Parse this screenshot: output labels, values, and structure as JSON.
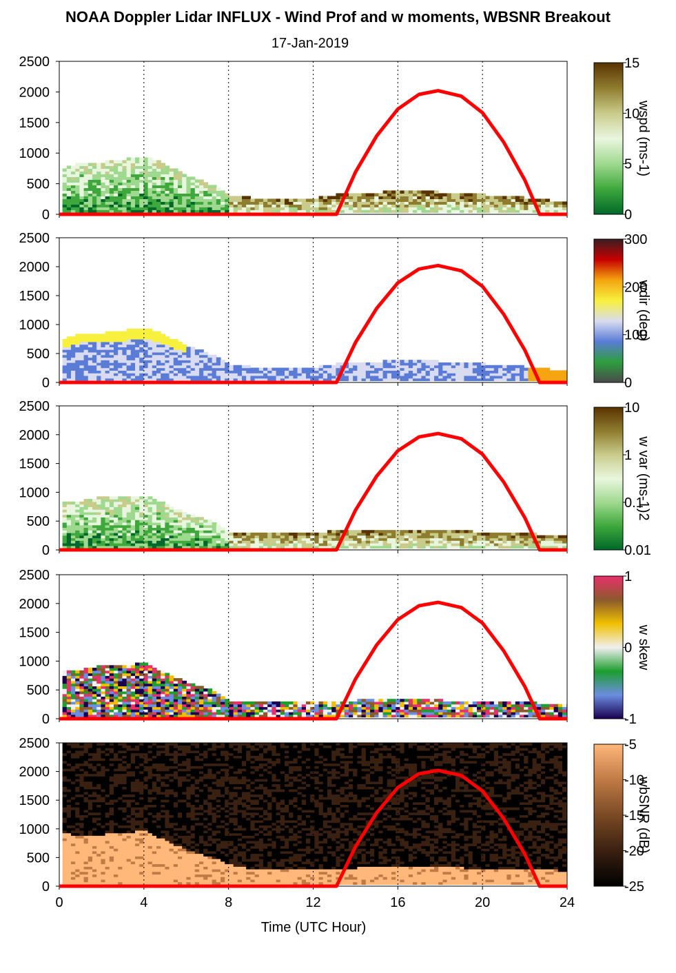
{
  "title": "NOAA Doppler Lidar INFLUX - Wind Prof and w moments, WBSNR Breakout",
  "date": "17-Jan-2019",
  "chart_data": {
    "type": "heatmap",
    "xlabel": "Time (UTC Hour)",
    "xticks": [
      "0",
      "4",
      "8",
      "12",
      "16",
      "20",
      "24"
    ],
    "xlim": [
      0,
      24
    ],
    "ylim": [
      0,
      2500
    ],
    "yticks": [
      "0",
      "500",
      "1000",
      "1500",
      "2000",
      "2500"
    ],
    "grid": "vertical dotted",
    "panels": [
      {
        "variable": "wspd",
        "colorbar_label": "wspd (ms-1)",
        "colorbar_ticks": [
          "0",
          "5",
          "10",
          "15"
        ],
        "colors": [
          "#00682a",
          "#3ea83c",
          "#9fd98f",
          "#e9f6df",
          "#c9cb8a",
          "#8f7d2f",
          "#5a3300"
        ],
        "top_of_data_m": [
          [
            0,
            720
          ],
          [
            1,
            840
          ],
          [
            2,
            840
          ],
          [
            3,
            880
          ],
          [
            4,
            930
          ],
          [
            5,
            780
          ],
          [
            6,
            600
          ],
          [
            7,
            480
          ],
          [
            8,
            300
          ],
          [
            9,
            250
          ],
          [
            10,
            240
          ],
          [
            11,
            240
          ],
          [
            12,
            250
          ],
          [
            13,
            300
          ],
          [
            14,
            320
          ],
          [
            15,
            340
          ],
          [
            16,
            360
          ],
          [
            17,
            360
          ],
          [
            18,
            340
          ],
          [
            19,
            330
          ],
          [
            20,
            300
          ],
          [
            21,
            290
          ],
          [
            22,
            250
          ],
          [
            23,
            220
          ],
          [
            24,
            150
          ]
        ]
      },
      {
        "variable": "wdir",
        "colorbar_label": "wdir (deg)",
        "colorbar_ticks": [
          "0",
          "100",
          "200",
          "300"
        ],
        "colors": [
          "#4a4a4a",
          "#2e9e3e",
          "#5a7cd6",
          "#d9dcf0",
          "#f7f03c",
          "#f4a510",
          "#c80000",
          "#3a1e22"
        ],
        "top_of_data_m": [
          [
            0,
            720
          ],
          [
            1,
            840
          ],
          [
            2,
            840
          ],
          [
            3,
            880
          ],
          [
            4,
            930
          ],
          [
            5,
            780
          ],
          [
            6,
            600
          ],
          [
            7,
            480
          ],
          [
            8,
            300
          ],
          [
            9,
            250
          ],
          [
            10,
            240
          ],
          [
            11,
            240
          ],
          [
            12,
            250
          ],
          [
            13,
            300
          ],
          [
            14,
            320
          ],
          [
            15,
            340
          ],
          [
            16,
            360
          ],
          [
            17,
            360
          ],
          [
            18,
            340
          ],
          [
            19,
            330
          ],
          [
            20,
            300
          ],
          [
            21,
            290
          ],
          [
            22,
            250
          ],
          [
            23,
            220
          ],
          [
            24,
            150
          ]
        ]
      },
      {
        "variable": "w var",
        "colorbar_label": "w var (ms-1)2",
        "colorbar_ticks": [
          "0.01",
          "0.1",
          "1",
          "10"
        ],
        "colors": [
          "#00682a",
          "#3ea83c",
          "#9fd98f",
          "#e9f6df",
          "#c9cb8a",
          "#8f7d2f",
          "#5a3300"
        ],
        "top_of_data_m": [
          [
            0,
            820
          ],
          [
            1,
            840
          ],
          [
            2,
            900
          ],
          [
            3,
            920
          ],
          [
            4,
            930
          ],
          [
            5,
            760
          ],
          [
            6,
            600
          ],
          [
            7,
            500
          ],
          [
            8,
            300
          ],
          [
            9,
            260
          ],
          [
            10,
            260
          ],
          [
            11,
            280
          ],
          [
            12,
            270
          ],
          [
            13,
            320
          ],
          [
            14,
            300
          ],
          [
            15,
            340
          ],
          [
            16,
            340
          ],
          [
            17,
            340
          ],
          [
            18,
            320
          ],
          [
            19,
            310
          ],
          [
            20,
            290
          ],
          [
            21,
            280
          ],
          [
            22,
            260
          ],
          [
            23,
            250
          ],
          [
            24,
            240
          ]
        ]
      },
      {
        "variable": "w skew",
        "colorbar_label": "w skew",
        "colorbar_ticks": [
          "-1",
          "0",
          "1"
        ],
        "colors": [
          "#1a0050",
          "#6a8ee0",
          "#1e9e2e",
          "#f0f0f0",
          "#f0c000",
          "#8b5a2b",
          "#e8306a"
        ],
        "top_of_data_m": [
          [
            0,
            800
          ],
          [
            1,
            840
          ],
          [
            2,
            900
          ],
          [
            3,
            920
          ],
          [
            4,
            940
          ],
          [
            5,
            760
          ],
          [
            6,
            600
          ],
          [
            7,
            500
          ],
          [
            8,
            300
          ],
          [
            9,
            280
          ],
          [
            10,
            280
          ],
          [
            11,
            290
          ],
          [
            12,
            290
          ],
          [
            13,
            300
          ],
          [
            14,
            300
          ],
          [
            15,
            320
          ],
          [
            16,
            320
          ],
          [
            17,
            320
          ],
          [
            18,
            300
          ],
          [
            19,
            290
          ],
          [
            20,
            280
          ],
          [
            21,
            270
          ],
          [
            22,
            260
          ],
          [
            23,
            250
          ],
          [
            24,
            240
          ]
        ]
      },
      {
        "variable": "wbSNR",
        "colorbar_label": "wbSNR (dB)",
        "colorbar_ticks": [
          "-25",
          "-20",
          "-15",
          "-10",
          "-5"
        ],
        "colors": [
          "#000000",
          "#3a2010",
          "#7a4a25",
          "#c07a45",
          "#ffb77a"
        ],
        "top_of_data_m": [
          [
            0,
            900
          ],
          [
            1,
            860
          ],
          [
            2,
            880
          ],
          [
            3,
            920
          ],
          [
            4,
            940
          ],
          [
            5,
            760
          ],
          [
            6,
            600
          ],
          [
            7,
            500
          ],
          [
            8,
            350
          ],
          [
            9,
            280
          ],
          [
            10,
            270
          ],
          [
            11,
            280
          ],
          [
            12,
            280
          ],
          [
            13,
            300
          ],
          [
            14,
            300
          ],
          [
            15,
            320
          ],
          [
            16,
            320
          ],
          [
            17,
            320
          ],
          [
            18,
            320
          ],
          [
            19,
            300
          ],
          [
            20,
            300
          ],
          [
            21,
            290
          ],
          [
            22,
            270
          ],
          [
            23,
            260
          ],
          [
            24,
            250
          ]
        ]
      }
    ],
    "overlay_series": {
      "color": "#ff0000",
      "x": [
        13.1,
        14,
        15,
        16,
        17,
        17.9,
        19,
        20,
        21,
        22,
        22.7,
        24
      ],
      "y": [
        0,
        690,
        1280,
        1720,
        1960,
        2020,
        1930,
        1660,
        1180,
        560,
        0,
        0
      ],
      "baseline_until_x": 13.1
    }
  }
}
